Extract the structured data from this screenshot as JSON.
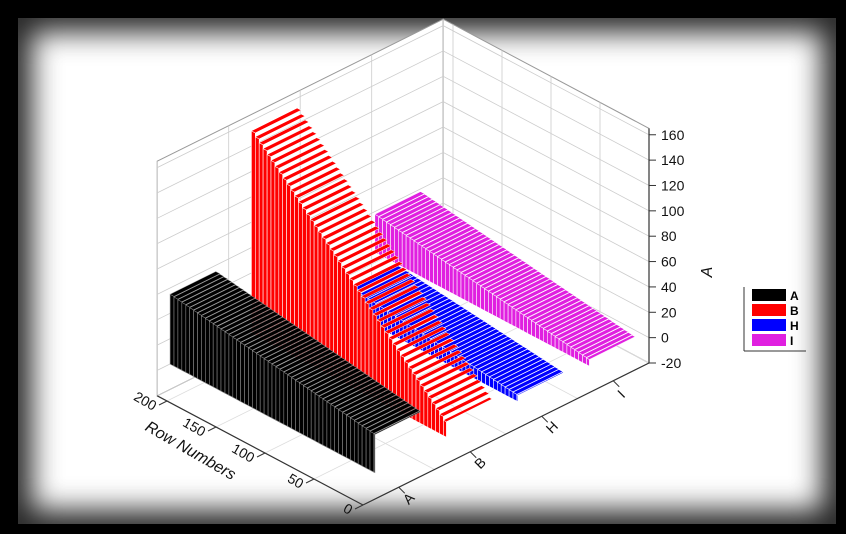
{
  "chart_data": {
    "type": "bar",
    "subtype": "3d-walls",
    "title": "",
    "axes": {
      "x": {
        "label": "Row Numbers",
        "ticks": [
          "0",
          "50",
          "100",
          "150",
          "200"
        ],
        "range": [
          0,
          210
        ]
      },
      "y": {
        "label": "",
        "ticks": [
          "A",
          "B",
          "H",
          "I"
        ]
      },
      "z": {
        "label": "A",
        "ticks": [
          "-20",
          "0",
          "20",
          "40",
          "60",
          "80",
          "100",
          "120",
          "140",
          "160"
        ],
        "range": [
          -20,
          165
        ]
      }
    },
    "grid": true,
    "legend": {
      "position": "right",
      "entries": [
        "A",
        "B",
        "H",
        "I"
      ]
    },
    "series": [
      {
        "name": "A",
        "color": "#000000",
        "row_start": 1,
        "row_end": 210,
        "value_start": 30,
        "value_end": 55
      },
      {
        "name": "B",
        "color": "#ff0000",
        "row_start": 1,
        "row_end": 200,
        "value_start": 10,
        "value_end": 160
      },
      {
        "name": "H",
        "color": "#0000ff",
        "row_start": 1,
        "row_end": 170,
        "value_start": 5,
        "value_end": 20
      },
      {
        "name": "I",
        "color": "#e020e0",
        "row_start": 1,
        "row_end": 220,
        "value_start": 5,
        "value_end": 30
      }
    ]
  }
}
